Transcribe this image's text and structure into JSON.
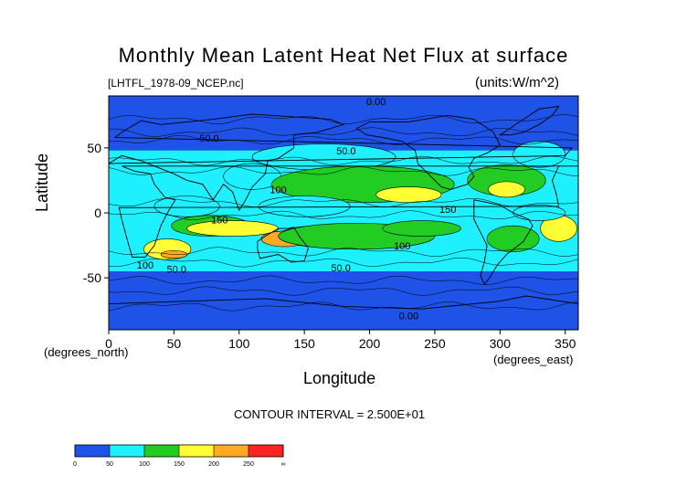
{
  "chart_data": {
    "type": "heatmap",
    "title": "Monthly Mean Latent Heat Net Flux at surface",
    "source_label": "[LHTFL_1978-09_NCEP.nc]",
    "units_label": "(units:W/m^2)",
    "xlabel": "Longitude",
    "ylabel": "Latitude",
    "x_unit_label": "(degrees_east)",
    "y_unit_label": "(degrees_north)",
    "xlim": [
      0,
      360
    ],
    "ylim": [
      -90,
      90
    ],
    "x_ticks": [
      "0",
      "50",
      "100",
      "150",
      "200",
      "250",
      "300",
      "350"
    ],
    "y_ticks": [
      "50",
      "0",
      "-50"
    ],
    "contour_interval_text": "CONTOUR INTERVAL = 2.500E+01",
    "contour_labels": [
      {
        "text": "0.00",
        "lon": 205,
        "lat": 83
      },
      {
        "text": "50.0",
        "lon": 77,
        "lat": 55
      },
      {
        "text": "50.0",
        "lon": 182,
        "lat": 45
      },
      {
        "text": "100",
        "lon": 130,
        "lat": 15
      },
      {
        "text": "150",
        "lon": 85,
        "lat": -8
      },
      {
        "text": "150",
        "lon": 260,
        "lat": 0
      },
      {
        "text": "100",
        "lon": 225,
        "lat": -28
      },
      {
        "text": "100",
        "lon": 28,
        "lat": -43
      },
      {
        "text": "50.0",
        "lon": 52,
        "lat": -46
      },
      {
        "text": "50.0",
        "lon": 178,
        "lat": -45
      },
      {
        "text": "0.00",
        "lon": 230,
        "lat": -82
      }
    ],
    "colorbar": {
      "bounds": [
        "0",
        "50",
        "100",
        "150",
        "200",
        "250",
        "∞"
      ],
      "colors": [
        "#1f52e6",
        "#1f52e6",
        "#1ff0ff",
        "#1ff0ff",
        "#22cc22",
        "#22cc22",
        "#ffff33",
        "#ffff33",
        "#ffaa22",
        "#ffaa22",
        "#ff2222",
        "#ff2222"
      ]
    },
    "field_blobs": [
      {
        "lon": 165,
        "lat": 43,
        "rx": 55,
        "ry": 10,
        "value": 60
      },
      {
        "lon": 330,
        "lat": 45,
        "rx": 20,
        "ry": 10,
        "value": 60
      },
      {
        "lon": 110,
        "lat": 28,
        "rx": 22,
        "ry": 10,
        "value": 80
      },
      {
        "lon": 195,
        "lat": 22,
        "rx": 70,
        "ry": 14,
        "value": 115
      },
      {
        "lon": 305,
        "lat": 25,
        "rx": 30,
        "ry": 12,
        "value": 110
      },
      {
        "lon": 230,
        "lat": 14,
        "rx": 25,
        "ry": 6,
        "value": 160
      },
      {
        "lon": 305,
        "lat": 18,
        "rx": 14,
        "ry": 6,
        "value": 150
      },
      {
        "lon": 78,
        "lat": -10,
        "rx": 30,
        "ry": 8,
        "value": 140
      },
      {
        "lon": 95,
        "lat": -12,
        "rx": 35,
        "ry": 6,
        "value": 160
      },
      {
        "lon": 160,
        "lat": -18,
        "rx": 30,
        "ry": 8,
        "value": 190
      },
      {
        "lon": 160,
        "lat": -16,
        "rx": 9,
        "ry": 4,
        "value": 260
      },
      {
        "lon": 135,
        "lat": -20,
        "rx": 18,
        "ry": 6,
        "value": 210
      },
      {
        "lon": 190,
        "lat": -18,
        "rx": 60,
        "ry": 10,
        "value": 120
      },
      {
        "lon": 240,
        "lat": -12,
        "rx": 30,
        "ry": 6,
        "value": 145
      },
      {
        "lon": 345,
        "lat": -12,
        "rx": 14,
        "ry": 10,
        "value": 150
      },
      {
        "lon": 310,
        "lat": -20,
        "rx": 20,
        "ry": 10,
        "value": 120
      },
      {
        "lon": 45,
        "lat": -28,
        "rx": 18,
        "ry": 8,
        "value": 150
      },
      {
        "lon": 50,
        "lat": -32,
        "rx": 10,
        "ry": 3,
        "value": 200
      },
      {
        "lon": 150,
        "lat": 5,
        "rx": 35,
        "ry": 8,
        "value": 90
      },
      {
        "lon": 60,
        "lat": 5,
        "rx": 25,
        "ry": 8,
        "value": 80
      },
      {
        "lon": 330,
        "lat": 0,
        "rx": 20,
        "ry": 6,
        "value": 80
      }
    ],
    "landmasses": [
      {
        "name": "North America",
        "points": [
          [
            190,
            65
          ],
          [
            200,
            70
          ],
          [
            230,
            70
          ],
          [
            260,
            75
          ],
          [
            280,
            72
          ],
          [
            295,
            62
          ],
          [
            300,
            52
          ],
          [
            290,
            46
          ],
          [
            280,
            42
          ],
          [
            276,
            35
          ],
          [
            280,
            28
          ],
          [
            275,
            22
          ],
          [
            262,
            18
          ],
          [
            255,
            20
          ],
          [
            245,
            30
          ],
          [
            237,
            38
          ],
          [
            235,
            48
          ],
          [
            225,
            55
          ],
          [
            210,
            58
          ],
          [
            198,
            60
          ]
        ]
      },
      {
        "name": "Greenland",
        "points": [
          [
            300,
            60
          ],
          [
            315,
            70
          ],
          [
            330,
            80
          ],
          [
            345,
            82
          ],
          [
            340,
            75
          ],
          [
            330,
            68
          ],
          [
            318,
            62
          ],
          [
            308,
            60
          ]
        ]
      },
      {
        "name": "South America",
        "points": [
          [
            280,
            10
          ],
          [
            290,
            8
          ],
          [
            300,
            6
          ],
          [
            310,
            0
          ],
          [
            322,
            -5
          ],
          [
            325,
            -10
          ],
          [
            318,
            -22
          ],
          [
            305,
            -32
          ],
          [
            298,
            -40
          ],
          [
            292,
            -50
          ],
          [
            288,
            -55
          ],
          [
            285,
            -48
          ],
          [
            288,
            -38
          ],
          [
            290,
            -25
          ],
          [
            285,
            -15
          ],
          [
            280,
            -5
          ]
        ]
      },
      {
        "name": "Africa",
        "points": [
          [
            345,
            36
          ],
          [
            360,
            36
          ],
          [
            10,
            36
          ],
          [
            20,
            32
          ],
          [
            32,
            30
          ],
          [
            35,
            22
          ],
          [
            43,
            12
          ],
          [
            51,
            10
          ],
          [
            45,
            0
          ],
          [
            40,
            -10
          ],
          [
            35,
            -25
          ],
          [
            28,
            -34
          ],
          [
            18,
            -34
          ],
          [
            14,
            -20
          ],
          [
            10,
            -5
          ],
          [
            8,
            4
          ],
          [
            345,
            5
          ],
          [
            343,
            15
          ],
          [
            340,
            25
          ]
        ]
      },
      {
        "name": "Eurasia",
        "points": [
          [
            0,
            38
          ],
          [
            10,
            44
          ],
          [
            25,
            40
          ],
          [
            35,
            36
          ],
          [
            50,
            30
          ],
          [
            60,
            25
          ],
          [
            72,
            22
          ],
          [
            80,
            10
          ],
          [
            88,
            22
          ],
          [
            95,
            16
          ],
          [
            100,
            2
          ],
          [
            105,
            10
          ],
          [
            110,
            20
          ],
          [
            120,
            30
          ],
          [
            122,
            40
          ],
          [
            130,
            42
          ],
          [
            142,
            50
          ],
          [
            142,
            60
          ],
          [
            160,
            62
          ],
          [
            170,
            65
          ],
          [
            180,
            68
          ],
          [
            170,
            72
          ],
          [
            140,
            74
          ],
          [
            110,
            76
          ],
          [
            80,
            72
          ],
          [
            60,
            70
          ],
          [
            40,
            68
          ],
          [
            25,
            71
          ],
          [
            10,
            62
          ],
          [
            5,
            58
          ],
          [
            355,
            50
          ],
          [
            350,
            44
          ]
        ]
      },
      {
        "name": "Australia",
        "points": [
          [
            114,
            -22
          ],
          [
            120,
            -18
          ],
          [
            130,
            -12
          ],
          [
            138,
            -12
          ],
          [
            142,
            -11
          ],
          [
            146,
            -18
          ],
          [
            153,
            -27
          ],
          [
            150,
            -37
          ],
          [
            140,
            -38
          ],
          [
            130,
            -32
          ],
          [
            116,
            -35
          ],
          [
            114,
            -28
          ]
        ]
      },
      {
        "name": "Antarctica",
        "points": [
          [
            0,
            -70
          ],
          [
            60,
            -68
          ],
          [
            120,
            -66
          ],
          [
            180,
            -72
          ],
          [
            240,
            -74
          ],
          [
            300,
            -68
          ],
          [
            320,
            -64
          ],
          [
            360,
            -70
          ],
          [
            360,
            -90
          ],
          [
            0,
            -90
          ]
        ]
      }
    ]
  }
}
